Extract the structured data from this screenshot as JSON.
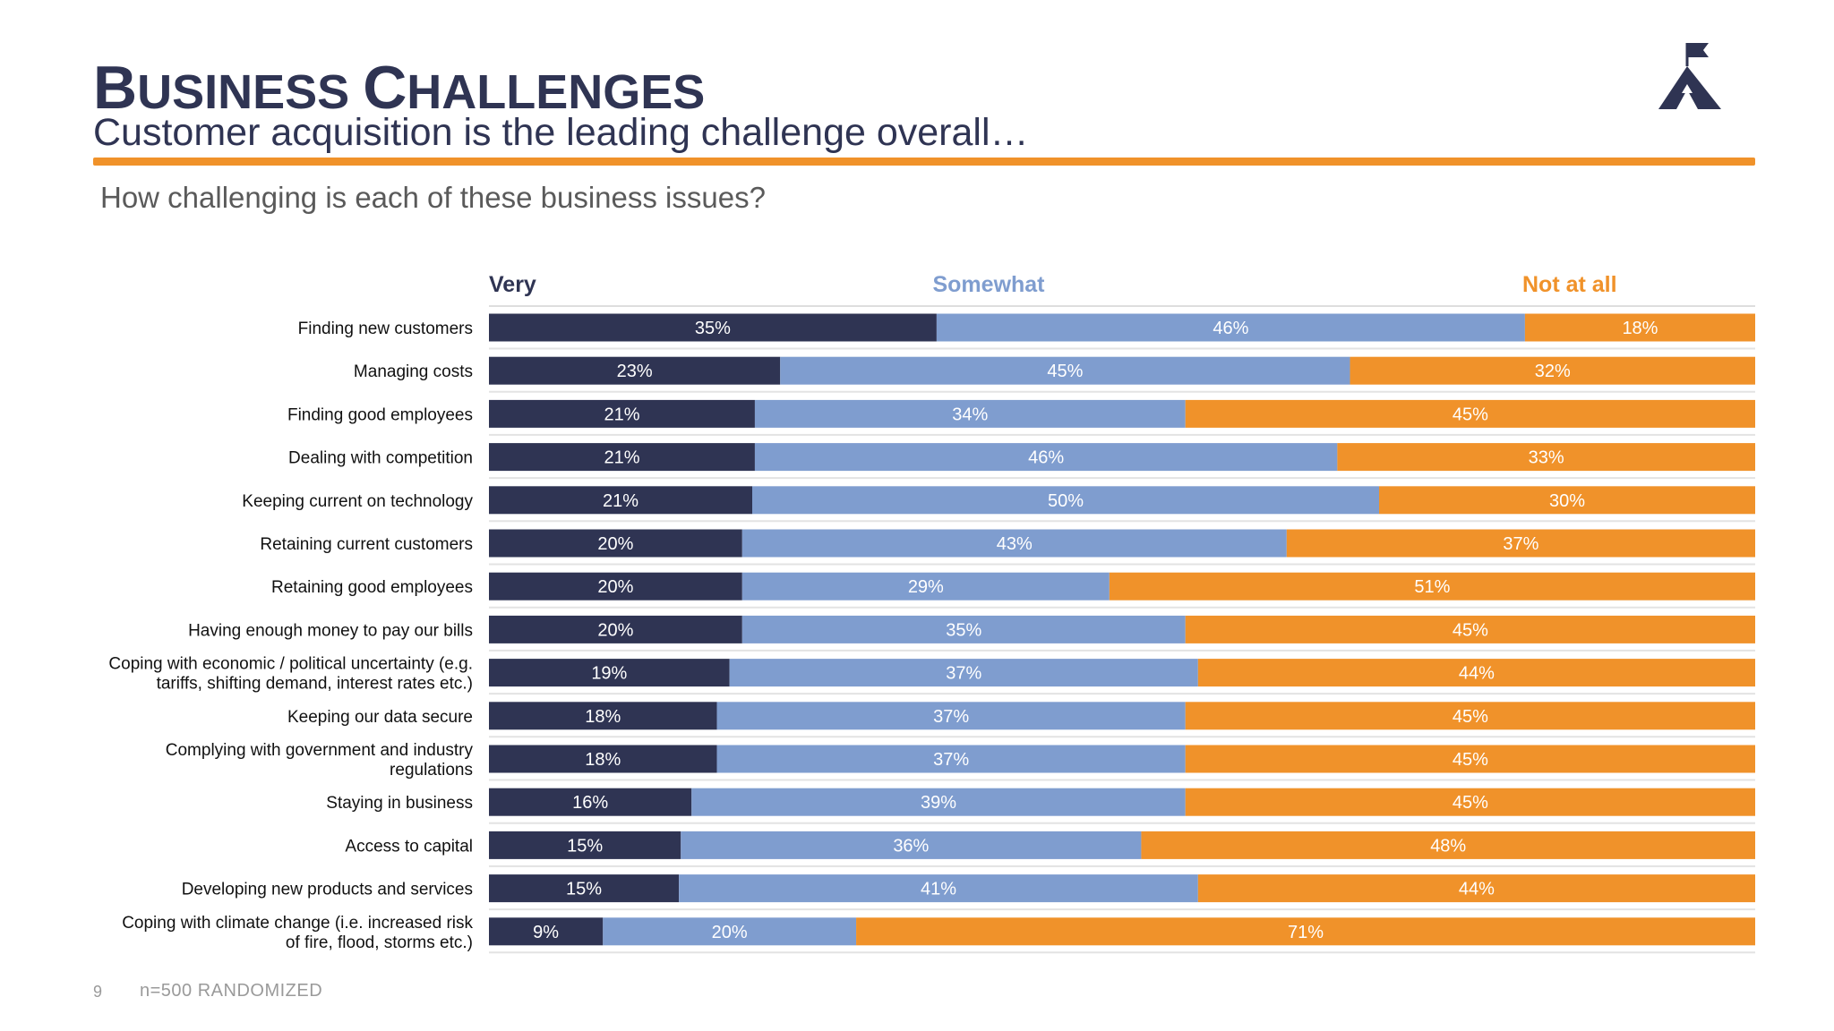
{
  "header": {
    "title_first": "B",
    "title_rest": "USINESS ",
    "title_first2": "C",
    "title_rest2": "HALLENGES",
    "subtitle": "Customer acquisition is the leading challenge overall…",
    "question": "How challenging is each of these business issues?"
  },
  "footer": {
    "page_number": "9",
    "note": "n=500 RANDOMIZED"
  },
  "colors": {
    "very": "#2f3453",
    "somewhat": "#7f9dcf",
    "not_at_all": "#f0922a",
    "accent_rule": "#f0922a"
  },
  "logo_icon": "mountain-flag-icon",
  "chart_data": {
    "type": "bar",
    "orientation": "horizontal",
    "stacked": true,
    "normalized": true,
    "categories": [
      [
        "Finding new customers"
      ],
      [
        "Managing costs"
      ],
      [
        "Finding good employees"
      ],
      [
        "Dealing with competition"
      ],
      [
        "Keeping current on technology"
      ],
      [
        "Retaining current customers"
      ],
      [
        "Retaining good employees"
      ],
      [
        "Having enough money to pay our bills"
      ],
      [
        "Coping with economic / political uncertainty (e.g.",
        "tariffs, shifting demand, interest rates etc.)"
      ],
      [
        "Keeping our data secure"
      ],
      [
        "Complying with government and industry",
        "regulations"
      ],
      [
        "Staying in business"
      ],
      [
        "Access to capital"
      ],
      [
        "Developing new products and services"
      ],
      [
        "Coping with climate change (i.e. increased risk",
        "of fire, flood, storms etc.)"
      ]
    ],
    "series": [
      {
        "name": "Very",
        "values": [
          35,
          23,
          21,
          21,
          21,
          20,
          20,
          20,
          19,
          18,
          18,
          16,
          15,
          15,
          9
        ]
      },
      {
        "name": "Somewhat",
        "values": [
          46,
          45,
          34,
          46,
          50,
          43,
          29,
          35,
          37,
          37,
          37,
          39,
          36,
          41,
          20
        ]
      },
      {
        "name": "Not at all",
        "values": [
          18,
          32,
          45,
          33,
          30,
          37,
          51,
          45,
          44,
          45,
          45,
          45,
          48,
          44,
          71
        ]
      }
    ],
    "value_suffix": "%",
    "legend_placement": "top"
  }
}
